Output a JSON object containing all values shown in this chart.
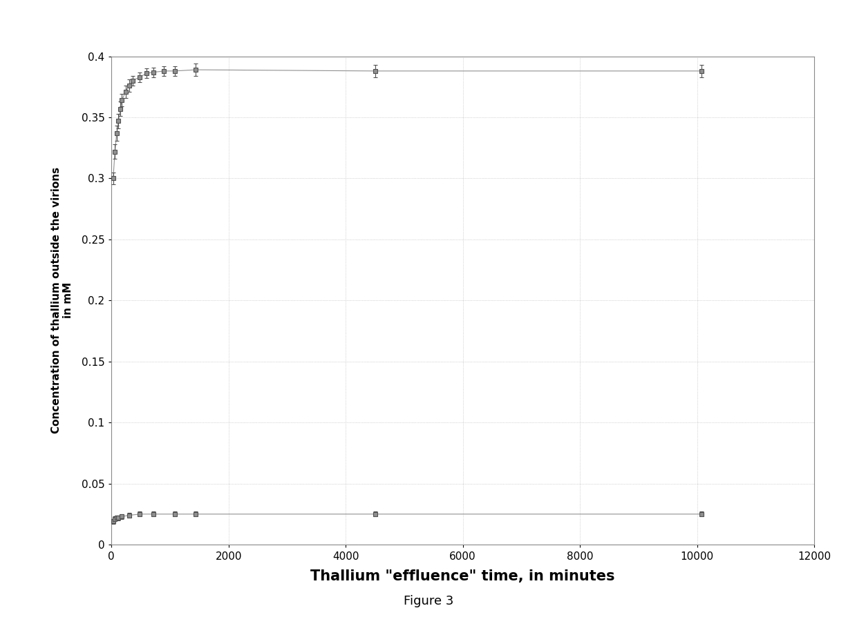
{
  "title": "",
  "xlabel": "Thallium \"effluence\" time, in minutes",
  "ylabel_line1": "Concentration of thallium outside the virions",
  "ylabel_line2": "in mM",
  "figure_caption": "Figure 3",
  "xlim": [
    0,
    12000
  ],
  "ylim": [
    0,
    0.4
  ],
  "xticks": [
    0,
    2000,
    4000,
    6000,
    8000,
    10000,
    12000
  ],
  "yticks": [
    0,
    0.05,
    0.1,
    0.15,
    0.2,
    0.25,
    0.3,
    0.35,
    0.4
  ],
  "series1_x": [
    30,
    60,
    90,
    120,
    150,
    180,
    240,
    300,
    360,
    480,
    600,
    720,
    900,
    1080,
    1440,
    4500,
    10080
  ],
  "series1_y": [
    0.3,
    0.322,
    0.337,
    0.347,
    0.357,
    0.364,
    0.371,
    0.376,
    0.38,
    0.383,
    0.386,
    0.387,
    0.388,
    0.388,
    0.389,
    0.388,
    0.388
  ],
  "series1_yerr": [
    0.005,
    0.006,
    0.006,
    0.006,
    0.006,
    0.005,
    0.005,
    0.005,
    0.004,
    0.004,
    0.004,
    0.004,
    0.004,
    0.004,
    0.005,
    0.005,
    0.005
  ],
  "series2_x": [
    30,
    60,
    90,
    120,
    180,
    300,
    480,
    720,
    1080,
    1440,
    4500,
    10080
  ],
  "series2_y": [
    0.019,
    0.021,
    0.022,
    0.022,
    0.023,
    0.024,
    0.025,
    0.025,
    0.025,
    0.025,
    0.025,
    0.025
  ],
  "series2_yerr": [
    0.002,
    0.002,
    0.002,
    0.002,
    0.002,
    0.002,
    0.002,
    0.002,
    0.002,
    0.002,
    0.002,
    0.002
  ],
  "marker_color": "#909090",
  "marker_edge_color": "#505050",
  "line_color": "#909090",
  "grid_color": "#aaaaaa",
  "background_color": "#ffffff",
  "plot_bg_color": "#ffffff",
  "border_color": "#888888",
  "marker_size": 5,
  "marker_style": "s",
  "line_width": 0.8,
  "xlabel_fontsize": 15,
  "ylabel_fontsize": 11,
  "tick_fontsize": 11,
  "caption_fontsize": 13
}
